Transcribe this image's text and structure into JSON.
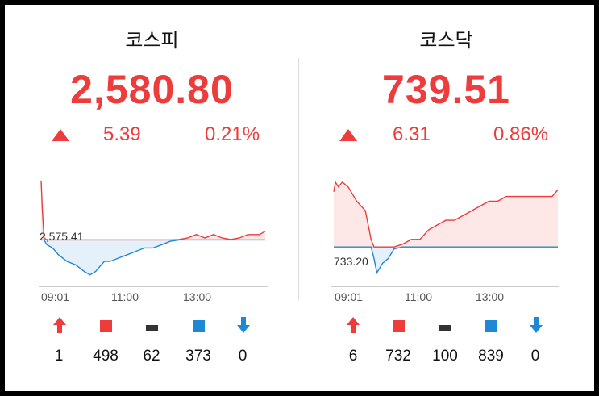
{
  "colors": {
    "up": "#ee3b3b",
    "down": "#1f88d6",
    "flat": "#333333"
  },
  "panels": [
    {
      "title": "코스피",
      "price": "2,580.80",
      "direction": "up",
      "change": "5.39",
      "change_pct": "0.21%",
      "baseline_label": "2,575.41",
      "time_labels": [
        "09:01",
        "11:00",
        "13:00"
      ],
      "stats": [
        {
          "icon": "limit-up-arrow-icon",
          "value": "1"
        },
        {
          "icon": "advance-square-icon",
          "value": "498"
        },
        {
          "icon": "unchanged-bar-icon",
          "value": "62"
        },
        {
          "icon": "decline-square-icon",
          "value": "373"
        },
        {
          "icon": "limit-down-arrow-icon",
          "value": "0"
        }
      ]
    },
    {
      "title": "코스닥",
      "price": "739.51",
      "direction": "up",
      "change": "6.31",
      "change_pct": "0.86%",
      "baseline_label": "733.20",
      "time_labels": [
        "09:01",
        "11:00",
        "13:00"
      ],
      "stats": [
        {
          "icon": "limit-up-arrow-icon",
          "value": "6"
        },
        {
          "icon": "advance-square-icon",
          "value": "732"
        },
        {
          "icon": "unchanged-bar-icon",
          "value": "100"
        },
        {
          "icon": "decline-square-icon",
          "value": "839"
        },
        {
          "icon": "limit-down-arrow-icon",
          "value": "0"
        }
      ]
    }
  ],
  "chart_data": [
    {
      "type": "line",
      "title": "코스피",
      "baseline": 2575.41,
      "x_ticks": [
        "09:01",
        "11:00",
        "13:00"
      ],
      "x_range": [
        "09:00",
        "15:30"
      ],
      "points": [
        [
          "09:00",
          2593
        ],
        [
          "09:02",
          2585
        ],
        [
          "09:05",
          2576
        ],
        [
          "09:10",
          2574
        ],
        [
          "09:20",
          2573
        ],
        [
          "09:30",
          2571
        ],
        [
          "09:45",
          2569
        ],
        [
          "10:00",
          2568
        ],
        [
          "10:15",
          2566
        ],
        [
          "10:25",
          2565
        ],
        [
          "10:35",
          2566
        ],
        [
          "10:50",
          2569
        ],
        [
          "11:00",
          2569
        ],
        [
          "11:15",
          2570
        ],
        [
          "11:30",
          2571
        ],
        [
          "11:45",
          2572
        ],
        [
          "12:00",
          2573
        ],
        [
          "12:15",
          2573
        ],
        [
          "12:30",
          2574
        ],
        [
          "12:45",
          2575
        ],
        [
          "13:00",
          2575.5
        ],
        [
          "13:15",
          2576
        ],
        [
          "13:30",
          2577
        ],
        [
          "13:45",
          2576
        ],
        [
          "14:00",
          2577
        ],
        [
          "14:15",
          2576
        ],
        [
          "14:30",
          2575.5
        ],
        [
          "14:45",
          2576
        ],
        [
          "15:00",
          2577
        ],
        [
          "15:20",
          2577
        ],
        [
          "15:30",
          2578
        ]
      ]
    },
    {
      "type": "line",
      "title": "코스닥",
      "baseline": 733.2,
      "x_ticks": [
        "09:01",
        "11:00",
        "13:00"
      ],
      "x_range": [
        "09:00",
        "15:30"
      ],
      "points": [
        [
          "09:00",
          739
        ],
        [
          "09:03",
          740
        ],
        [
          "09:08",
          739.5
        ],
        [
          "09:15",
          740
        ],
        [
          "09:25",
          739.5
        ],
        [
          "09:40",
          738
        ],
        [
          "09:55",
          737
        ],
        [
          "10:05",
          734
        ],
        [
          "10:10",
          732
        ],
        [
          "10:15",
          730.5
        ],
        [
          "10:25",
          731.5
        ],
        [
          "10:35",
          732
        ],
        [
          "10:45",
          733
        ],
        [
          "11:00",
          733.5
        ],
        [
          "11:15",
          734
        ],
        [
          "11:30",
          734
        ],
        [
          "11:45",
          735
        ],
        [
          "12:00",
          735.5
        ],
        [
          "12:15",
          736
        ],
        [
          "12:30",
          736
        ],
        [
          "12:45",
          736.5
        ],
        [
          "13:00",
          737
        ],
        [
          "13:15",
          737.5
        ],
        [
          "13:30",
          738
        ],
        [
          "13:45",
          738
        ],
        [
          "14:00",
          738.5
        ],
        [
          "14:15",
          738.5
        ],
        [
          "14:30",
          738.5
        ],
        [
          "14:45",
          738.5
        ],
        [
          "15:00",
          738.5
        ],
        [
          "15:20",
          738.5
        ],
        [
          "15:30",
          739.2
        ]
      ]
    }
  ]
}
